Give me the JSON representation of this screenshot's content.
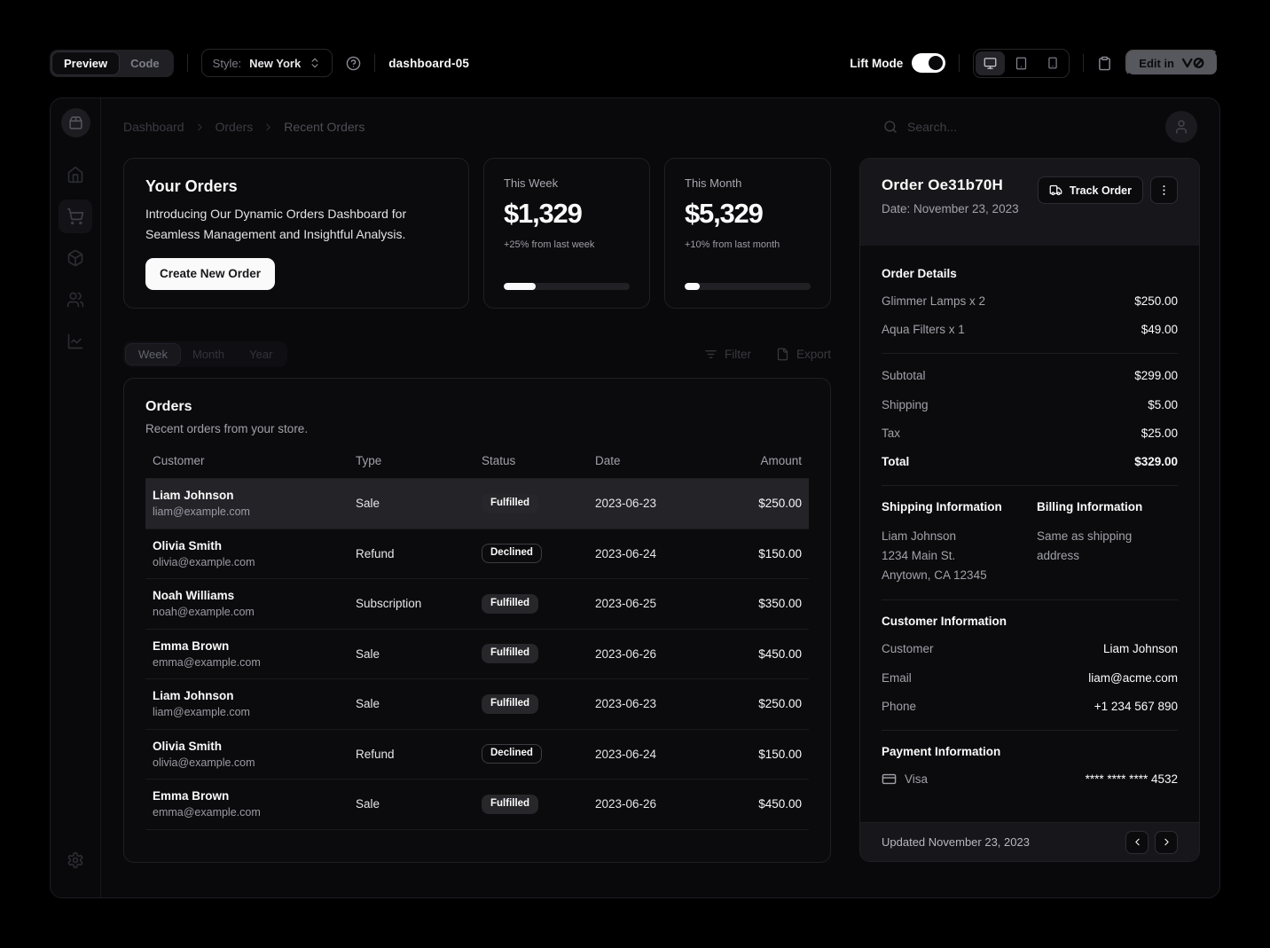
{
  "toolbar": {
    "preview_label": "Preview",
    "code_label": "Code",
    "style_label": "Style:",
    "style_value": "New York",
    "page_name": "dashboard-05",
    "lift_mode_label": "Lift Mode",
    "edit_in_label": "Edit in"
  },
  "header": {
    "breadcrumb": [
      "Dashboard",
      "Orders",
      "Recent Orders"
    ],
    "search_placeholder": "Search..."
  },
  "promo_card": {
    "title": "Your Orders",
    "description": "Introducing Our Dynamic Orders Dashboard for Seamless Management and Insightful Analysis.",
    "button_label": "Create New Order"
  },
  "stat_cards": [
    {
      "label": "This Week",
      "value": "$1,329",
      "delta": "+25% from last week",
      "progress_pct": 25
    },
    {
      "label": "This Month",
      "value": "$5,329",
      "delta": "+10% from last month",
      "progress_pct": 12
    }
  ],
  "period_tabs": [
    "Week",
    "Month",
    "Year"
  ],
  "table_actions": {
    "filter_label": "Filter",
    "export_label": "Export"
  },
  "orders_card": {
    "title": "Orders",
    "subtitle": "Recent orders from your store.",
    "columns": [
      "Customer",
      "Type",
      "Status",
      "Date",
      "Amount"
    ],
    "rows": [
      {
        "name": "Liam Johnson",
        "email": "liam@example.com",
        "type": "Sale",
        "status": "Fulfilled",
        "status_variant": "secondary",
        "date": "2023-06-23",
        "amount": "$250.00",
        "selected": true
      },
      {
        "name": "Olivia Smith",
        "email": "olivia@example.com",
        "type": "Refund",
        "status": "Declined",
        "status_variant": "outline",
        "date": "2023-06-24",
        "amount": "$150.00",
        "selected": false
      },
      {
        "name": "Noah Williams",
        "email": "noah@example.com",
        "type": "Subscription",
        "status": "Fulfilled",
        "status_variant": "secondary",
        "date": "2023-06-25",
        "amount": "$350.00",
        "selected": false
      },
      {
        "name": "Emma Brown",
        "email": "emma@example.com",
        "type": "Sale",
        "status": "Fulfilled",
        "status_variant": "secondary",
        "date": "2023-06-26",
        "amount": "$450.00",
        "selected": false
      },
      {
        "name": "Liam Johnson",
        "email": "liam@example.com",
        "type": "Sale",
        "status": "Fulfilled",
        "status_variant": "secondary",
        "date": "2023-06-23",
        "amount": "$250.00",
        "selected": false
      },
      {
        "name": "Olivia Smith",
        "email": "olivia@example.com",
        "type": "Refund",
        "status": "Declined",
        "status_variant": "outline",
        "date": "2023-06-24",
        "amount": "$150.00",
        "selected": false
      },
      {
        "name": "Emma Brown",
        "email": "emma@example.com",
        "type": "Sale",
        "status": "Fulfilled",
        "status_variant": "secondary",
        "date": "2023-06-26",
        "amount": "$450.00",
        "selected": false
      }
    ]
  },
  "order_panel": {
    "title": "Order Oe31b70H",
    "date": "Date: November 23, 2023",
    "track_order_label": "Track Order",
    "details_heading": "Order Details",
    "items": [
      {
        "name": "Glimmer Lamps x 2",
        "price": "$250.00"
      },
      {
        "name": "Aqua Filters x 1",
        "price": "$49.00"
      }
    ],
    "totals": [
      {
        "label": "Subtotal",
        "value": "$299.00"
      },
      {
        "label": "Shipping",
        "value": "$5.00"
      },
      {
        "label": "Tax",
        "value": "$25.00"
      },
      {
        "label": "Total",
        "value": "$329.00"
      }
    ],
    "shipping_heading": "Shipping Information",
    "shipping_lines": [
      "Liam Johnson",
      "1234 Main St.",
      "Anytown, CA 12345"
    ],
    "billing_heading": "Billing Information",
    "billing_text": "Same as shipping address",
    "customer_heading": "Customer Information",
    "customer_rows": [
      {
        "label": "Customer",
        "value": "Liam Johnson"
      },
      {
        "label": "Email",
        "value": "liam@acme.com"
      },
      {
        "label": "Phone",
        "value": "+1 234 567 890"
      }
    ],
    "payment_heading": "Payment Information",
    "payment_method": "Visa",
    "payment_number": "**** **** **** 4532",
    "footer_text": "Updated November 23, 2023"
  },
  "colors": {
    "background": "#000000",
    "card_background": "#0b0b0d",
    "panel_header_background": "#17171b",
    "selected_row": "#232328",
    "accent_foreground": "#fafafa",
    "muted_foreground": "#a1a1aa"
  },
  "icons": {
    "logo": "package2-icon",
    "nav": [
      "home-icon",
      "shopping-cart-icon",
      "package-icon",
      "users-icon",
      "line-chart-icon",
      "settings-icon"
    ],
    "toolbar": [
      "help-circle-icon",
      "monitor-icon",
      "tablet-icon",
      "smartphone-icon",
      "clipboard-icon",
      "v0-logo-icon",
      "chevrons-up-down-icon"
    ],
    "misc": [
      "search-icon",
      "user-icon",
      "chevron-right-icon",
      "list-filter-icon",
      "file-icon",
      "truck-icon",
      "more-vertical-icon",
      "credit-card-icon",
      "chevron-left-icon"
    ]
  }
}
